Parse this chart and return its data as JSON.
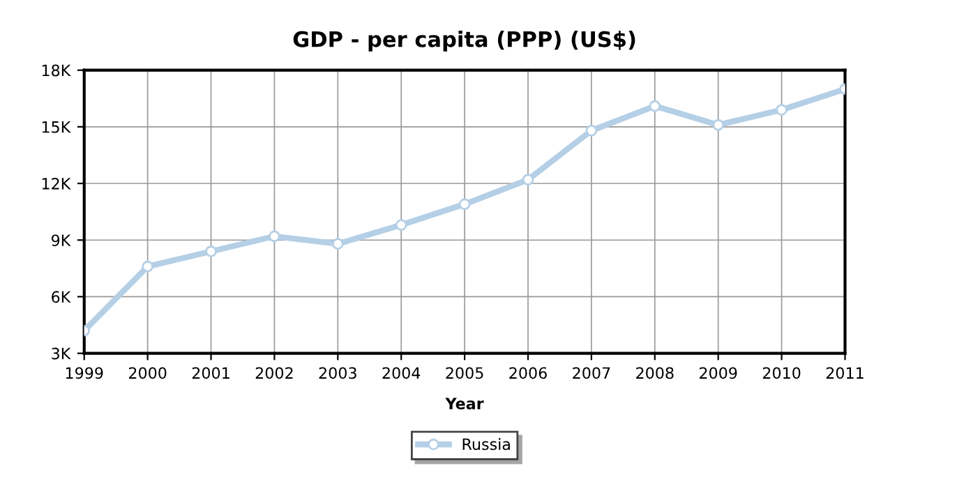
{
  "chart_data": {
    "type": "line",
    "title": "GDP - per capita (PPP) (US$)",
    "xlabel": "Year",
    "x": [
      1999,
      2000,
      2001,
      2002,
      2003,
      2004,
      2005,
      2006,
      2007,
      2008,
      2009,
      2010,
      2011
    ],
    "series": [
      {
        "name": "Russia",
        "color": "#b4cfe6",
        "values": [
          4200,
          7600,
          8400,
          9200,
          8800,
          9800,
          10900,
          12200,
          14800,
          16100,
          15100,
          15900,
          17000
        ]
      }
    ],
    "xlim": [
      1999,
      2011
    ],
    "xticks": [
      1999,
      2000,
      2001,
      2002,
      2003,
      2004,
      2005,
      2006,
      2007,
      2008,
      2009,
      2010,
      2011
    ],
    "ylim": [
      3000,
      18000
    ],
    "yticks": [
      {
        "value": 3000,
        "label": "3K"
      },
      {
        "value": 6000,
        "label": "6K"
      },
      {
        "value": 9000,
        "label": "9K"
      },
      {
        "value": 12000,
        "label": "12K"
      },
      {
        "value": 15000,
        "label": "15K"
      },
      {
        "value": 18000,
        "label": "18K"
      }
    ],
    "grid": true,
    "legend": "bottom",
    "marker": "circle",
    "line_style": "solid"
  }
}
